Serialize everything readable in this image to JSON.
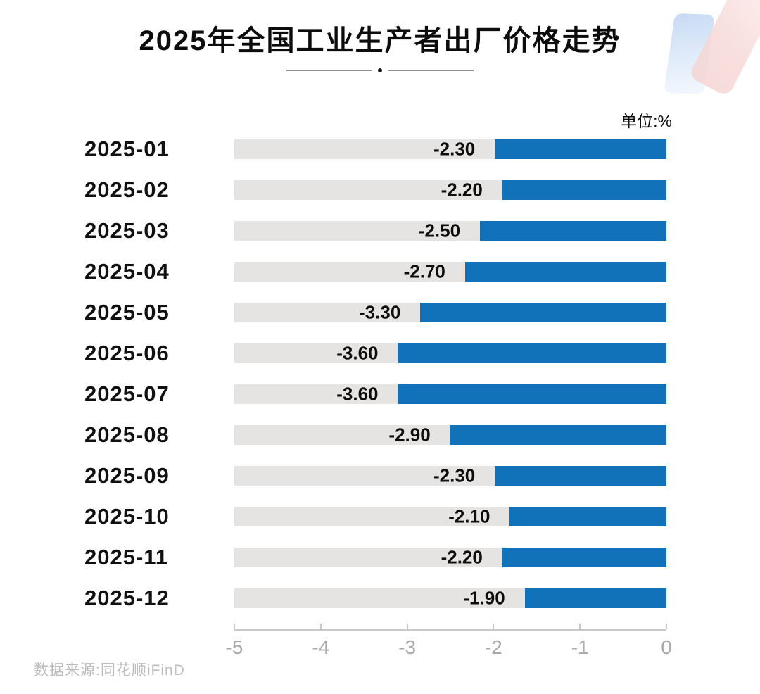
{
  "page": {
    "title": "2025年全国工业生产者出厂价格走势",
    "unit_label": "单位:%",
    "source": "数据来源:同花顺iFinD"
  },
  "chart_data": {
    "type": "bar",
    "orientation": "horizontal",
    "title": "2025年全国工业生产者出厂价格走势",
    "unit": "%",
    "categories": [
      "2025-01",
      "2025-02",
      "2025-03",
      "2025-04",
      "2025-05",
      "2025-06",
      "2025-07",
      "2025-08",
      "2025-09",
      "2025-10",
      "2025-11",
      "2025-12"
    ],
    "values": [
      -2.3,
      -2.2,
      -2.5,
      -2.7,
      -3.3,
      -3.6,
      -3.6,
      -2.9,
      -2.3,
      -2.1,
      -2.2,
      -1.9
    ],
    "value_labels": [
      "-2.30",
      "-2.20",
      "-2.50",
      "-2.70",
      "-3.30",
      "-3.60",
      "-3.60",
      "-2.90",
      "-2.30",
      "-2.10",
      "-2.20",
      "-1.90"
    ],
    "xlabel": "",
    "ylabel": "",
    "axis": {
      "min": -5,
      "max": 0,
      "ticks": [
        -5,
        -4,
        -3,
        -2,
        -1,
        0
      ],
      "tick_labels": [
        "-5",
        "-4",
        "-3",
        "-2",
        "-1",
        "0"
      ]
    },
    "legend": false,
    "grid": false,
    "colors": {
      "bar": "#1172b9",
      "track": "#e6e4e2",
      "axis_line": "#c9c9c9",
      "axis_text": "#a9a9a9"
    }
  }
}
